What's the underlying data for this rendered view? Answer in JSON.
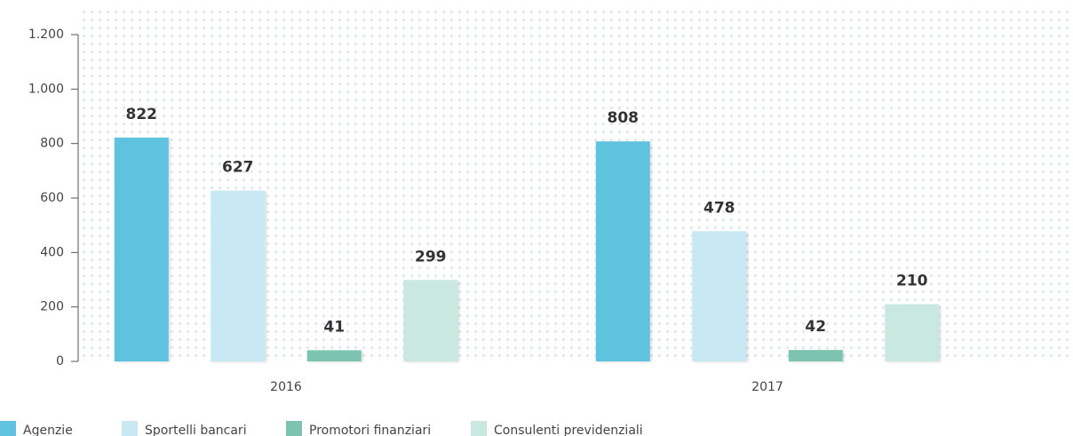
{
  "chart_data": {
    "type": "bar",
    "categories": [
      "2016",
      "2017"
    ],
    "series": [
      {
        "name": "Agenzie",
        "color": "#5fc3e0",
        "values": [
          822,
          808
        ]
      },
      {
        "name": "Sportelli bancari",
        "color": "#c8e8f4",
        "values": [
          627,
          478
        ]
      },
      {
        "name": "Promotori finanziari",
        "color": "#7cc4b0",
        "values": [
          41,
          42
        ]
      },
      {
        "name": "Consulenti previdenziali",
        "color": "#c9e9e0",
        "values": [
          299,
          210
        ]
      }
    ],
    "ylim": [
      0,
      1200
    ],
    "yticks": [
      0,
      200,
      400,
      600,
      800,
      {
        "value": 1000,
        "label": "1.000"
      },
      {
        "value": 1200,
        "label": "1.200"
      }
    ],
    "grid": false,
    "legend": "bottom-left"
  }
}
